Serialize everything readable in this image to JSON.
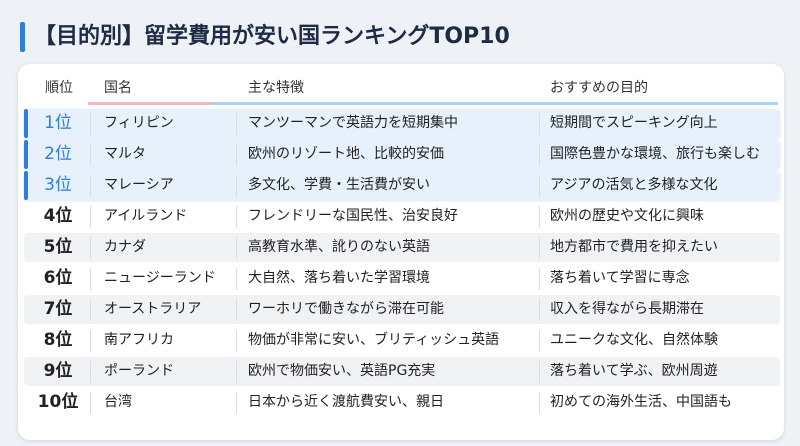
{
  "title": "【目的別】留学費用が安い国ランキングTOP10",
  "table": {
    "headers": [
      "順位",
      "国名",
      "主な特徴",
      "おすすめの目的"
    ],
    "rows": [
      [
        "1位",
        "フィリピン",
        "マンツーマンで英語力を短期集中",
        "短期間でスピーキング向上"
      ],
      [
        "2位",
        "マルタ",
        "欧州のリゾート地、比較的安価",
        "国際色豊かな環境、旅行も楽しむ"
      ],
      [
        "3位",
        "マレーシア",
        "多文化、学費・生活費が安い",
        "アジアの活気と多様な文化"
      ],
      [
        "4位",
        "アイルランド",
        "フレンドリーな国民性、治安良好",
        "欧州の歴史や文化に興味"
      ],
      [
        "5位",
        "カナダ",
        "高教育水準、訛りのない英語",
        "地方都市で費用を抑えたい"
      ],
      [
        "6位",
        "ニュージーランド",
        "大自然、落ち着いた学習環境",
        "落ち着いて学習に専念"
      ],
      [
        "7位",
        "オーストラリア",
        "ワーホリで働きながら滞在可能",
        "収入を得ながら長期滞在"
      ],
      [
        "8位",
        "南アフリカ",
        "物価が非常に安い、ブリティッシュ英語",
        "ユニークな文化、自然体験"
      ],
      [
        "9位",
        "ポーランド",
        "欧州で物価安い、英語PG充実",
        "落ち着いて学ぶ、欧州周遊"
      ],
      [
        "10位",
        "台湾",
        "日本から近く渡航費安い、親日",
        "初めての海外生活、中国語も"
      ]
    ]
  }
}
